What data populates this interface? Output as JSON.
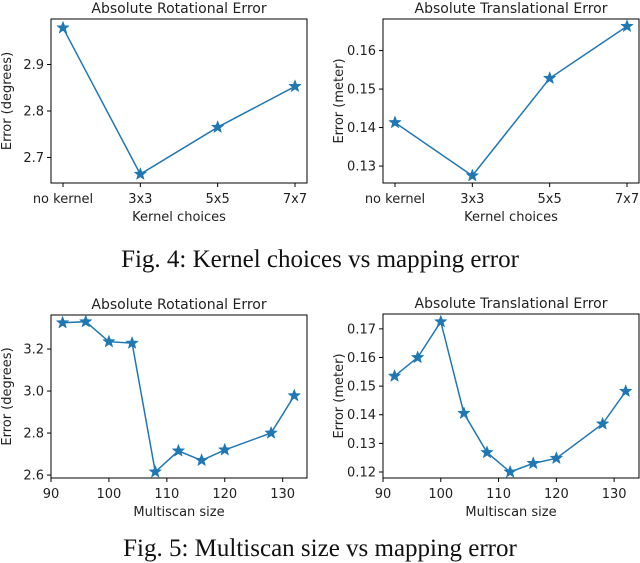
{
  "captions": {
    "fig4": "Fig. 4: Kernel choices vs mapping error",
    "fig5": "Fig. 5: Multiscan size vs mapping error"
  },
  "colors": {
    "line": "#1f77b4",
    "axis": "#000000"
  },
  "chart_data": [
    {
      "type": "line",
      "title": "Absolute Rotational Error",
      "xlabel": "Kernel choices",
      "ylabel": "Error (degrees)",
      "categories": [
        "no kernel",
        "3x3",
        "5x5",
        "7x7"
      ],
      "values": [
        2.979,
        2.664,
        2.765,
        2.853
      ],
      "yticks": [
        2.7,
        2.8,
        2.9
      ],
      "ytick_labels": [
        "2.7",
        "2.8",
        "2.9"
      ],
      "ylim": [
        2.645,
        2.998
      ],
      "marker": "star"
    },
    {
      "type": "line",
      "title": "Absolute Translational Error",
      "xlabel": "Kernel choices",
      "ylabel": "Error (meter)",
      "categories": [
        "no kernel",
        "3x3",
        "5x5",
        "7x7"
      ],
      "values": [
        0.1413,
        0.1275,
        0.1528,
        0.1663
      ],
      "yticks": [
        0.13,
        0.14,
        0.15,
        0.16
      ],
      "ytick_labels": [
        "0.13",
        "0.14",
        "0.15",
        "0.16"
      ],
      "ylim": [
        0.1256,
        0.1682
      ],
      "marker": "star"
    },
    {
      "type": "line",
      "title": "Absolute Rotational Error",
      "xlabel": "Multiscan size",
      "ylabel": "Error (degrees)",
      "x": [
        92,
        96,
        100,
        104,
        108,
        112,
        116,
        120,
        128,
        132
      ],
      "values": [
        3.325,
        3.33,
        3.235,
        3.228,
        2.615,
        2.715,
        2.67,
        2.72,
        2.8,
        2.978
      ],
      "xticks": [
        90,
        100,
        110,
        120,
        130
      ],
      "xtick_labels": [
        "90",
        "100",
        "110",
        "120",
        "130"
      ],
      "yticks": [
        2.6,
        2.8,
        3.0,
        3.2
      ],
      "ytick_labels": [
        "2.6",
        "2.8",
        "3.0",
        "3.2"
      ],
      "xlim": [
        90,
        134.2
      ],
      "ylim": [
        2.586,
        3.362
      ],
      "marker": "star"
    },
    {
      "type": "line",
      "title": "Absolute Translational Error",
      "xlabel": "Multiscan size",
      "ylabel": "Error (meter)",
      "x": [
        92,
        96,
        100,
        104,
        108,
        112,
        116,
        120,
        128,
        132
      ],
      "values": [
        0.1535,
        0.16,
        0.1725,
        0.1405,
        0.1268,
        0.12,
        0.123,
        0.1248,
        0.1368,
        0.1482
      ],
      "xticks": [
        90,
        100,
        110,
        120,
        130
      ],
      "xtick_labels": [
        "90",
        "100",
        "110",
        "120",
        "130"
      ],
      "yticks": [
        0.12,
        0.13,
        0.14,
        0.15,
        0.16,
        0.17
      ],
      "ytick_labels": [
        "0.12",
        "0.13",
        "0.14",
        "0.15",
        "0.16",
        "0.17"
      ],
      "xlim": [
        90,
        134.3
      ],
      "ylim": [
        0.1179,
        0.1752
      ],
      "marker": "star"
    }
  ]
}
